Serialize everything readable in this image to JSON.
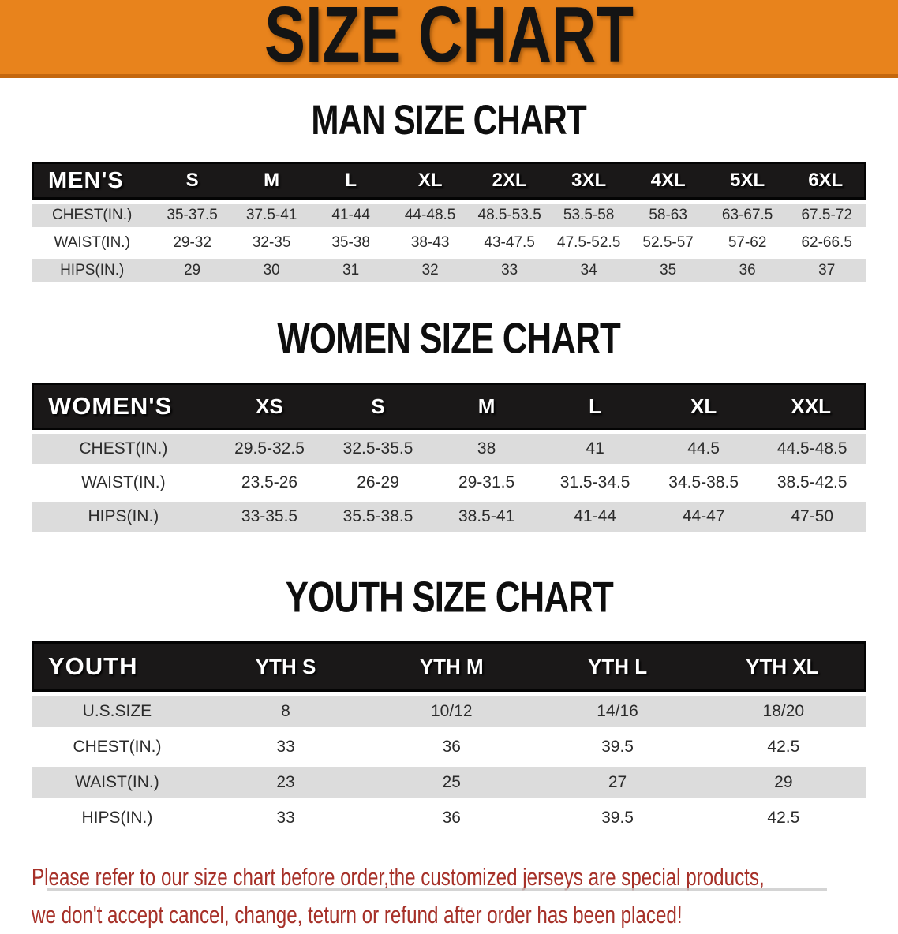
{
  "banner": {
    "title": "SIZE CHART"
  },
  "colors": {
    "banner_orange": "#E8831C",
    "banner_border": "#C4670E",
    "banner_text": "#141414",
    "header_bar_black": "#1A1818",
    "row_gray": "#DCDCDC",
    "row_white": "#FFFFFF",
    "table_text": "#2B2B2B",
    "disclaimer_red": "#A63028"
  },
  "sections": [
    {
      "heading": "MAN SIZE CHART",
      "header_label": "MEN'S",
      "columns": [
        "S",
        "M",
        "L",
        "XL",
        "2XL",
        "3XL",
        "4XL",
        "5XL",
        "6XL"
      ],
      "rows": [
        {
          "label": "CHEST(IN.)",
          "values": [
            "35-37.5",
            "37.5-41",
            "41-44",
            "44-48.5",
            "48.5-53.5",
            "53.5-58",
            "58-63",
            "63-67.5",
            "67.5-72"
          ]
        },
        {
          "label": "WAIST(IN.)",
          "values": [
            "29-32",
            "32-35",
            "35-38",
            "38-43",
            "43-47.5",
            "47.5-52.5",
            "52.5-57",
            "57-62",
            "62-66.5"
          ]
        },
        {
          "label": "HIPS(IN.)",
          "values": [
            "29",
            "30",
            "31",
            "32",
            "33",
            "34",
            "35",
            "36",
            "37"
          ]
        }
      ]
    },
    {
      "heading": "WOMEN SIZE CHART",
      "header_label": "WOMEN'S",
      "columns": [
        "XS",
        "S",
        "M",
        "L",
        "XL",
        "XXL"
      ],
      "rows": [
        {
          "label": "CHEST(IN.)",
          "values": [
            "29.5-32.5",
            "32.5-35.5",
            "38",
            "41",
            "44.5",
            "44.5-48.5"
          ]
        },
        {
          "label": "WAIST(IN.)",
          "values": [
            "23.5-26",
            "26-29",
            "29-31.5",
            "31.5-34.5",
            "34.5-38.5",
            "38.5-42.5"
          ]
        },
        {
          "label": "HIPS(IN.)",
          "values": [
            "33-35.5",
            "35.5-38.5",
            "38.5-41",
            "41-44",
            "44-47",
            "47-50"
          ]
        }
      ]
    },
    {
      "heading": "YOUTH SIZE CHART",
      "header_label": "YOUTH",
      "columns": [
        "YTH S",
        "YTH M",
        "YTH L",
        "YTH XL"
      ],
      "rows": [
        {
          "label": "U.S.SIZE",
          "values": [
            "8",
            "10/12",
            "14/16",
            "18/20"
          ]
        },
        {
          "label": "CHEST(IN.)",
          "values": [
            "33",
            "36",
            "39.5",
            "42.5"
          ]
        },
        {
          "label": "WAIST(IN.)",
          "values": [
            "23",
            "25",
            "27",
            "29"
          ]
        },
        {
          "label": "HIPS(IN.)",
          "values": [
            "33",
            "36",
            "39.5",
            "42.5"
          ]
        }
      ]
    }
  ],
  "disclaimer": {
    "line1": "Please refer to our size chart before order,the customized jerseys are special products,",
    "line2": "we don't accept cancel, change, teturn or refund after order has been placed!"
  }
}
